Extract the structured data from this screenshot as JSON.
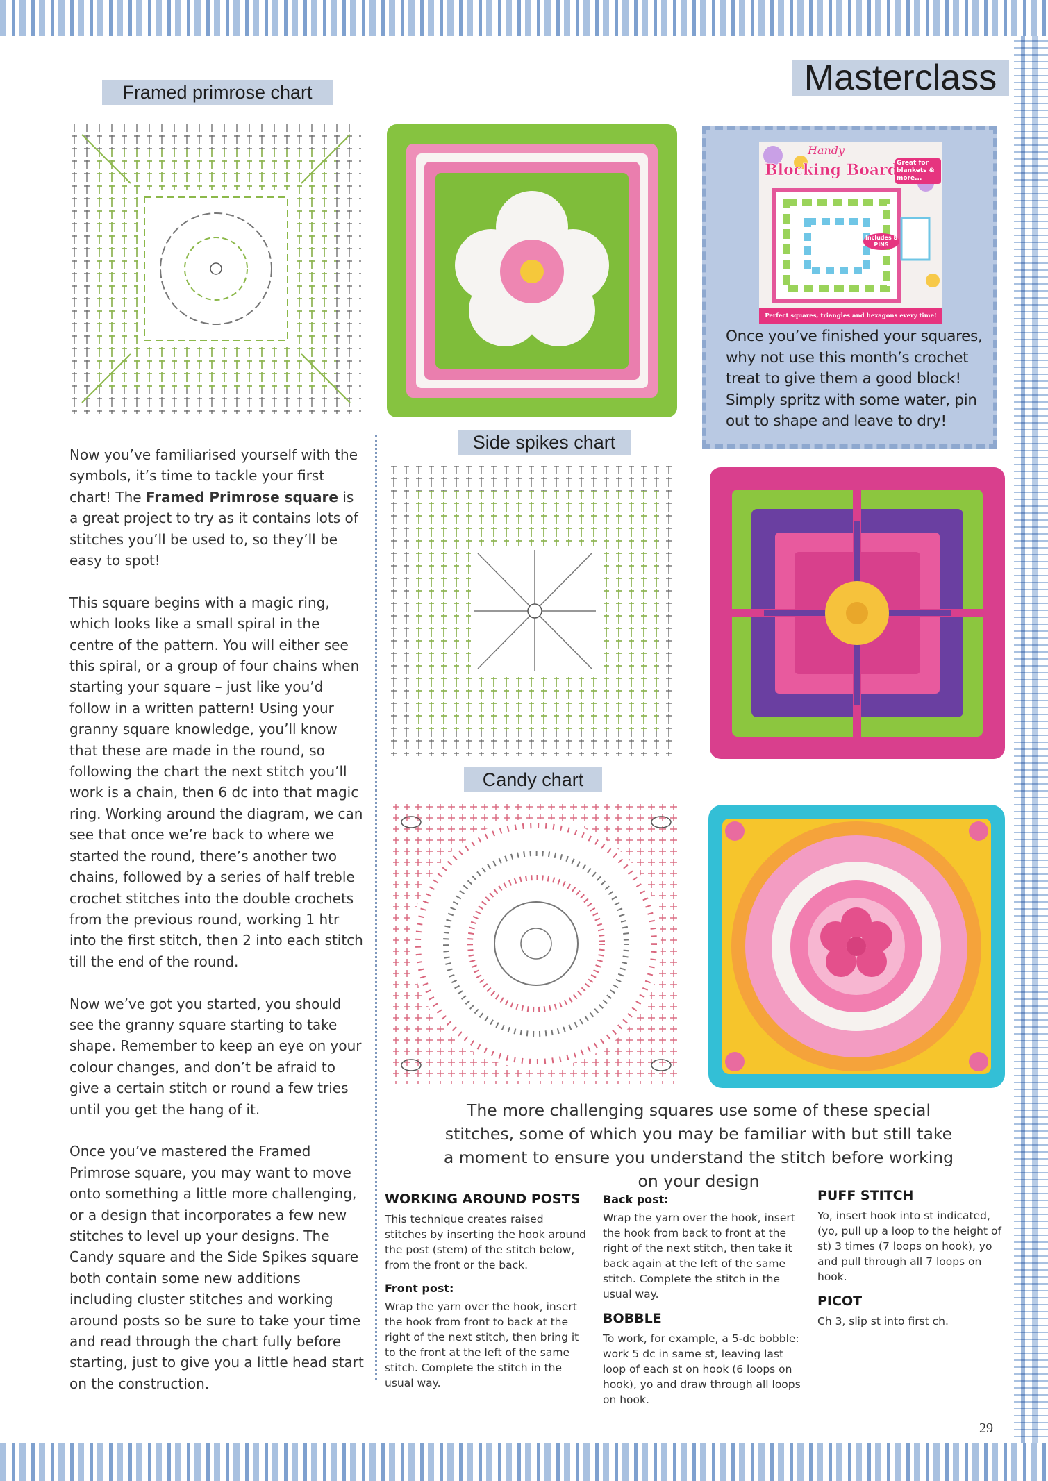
{
  "header": {
    "title": "Masterclass"
  },
  "charts": [
    {
      "label": "Framed primrose chart"
    },
    {
      "label": "Side spikes chart"
    },
    {
      "label": "Candy chart"
    }
  ],
  "body": {
    "intro": {
      "start": "Now you’ve familiarised yourself with the symbols, it’s time to tackle your first chart! The ",
      "bold": "Framed Primrose square",
      "end": " is a great project to try as it contains lots of stitches you’ll be used to, so they’ll be easy to spot!"
    },
    "paragraphs": [
      "This square begins with a magic ring, which looks like a small spiral in the centre of the pattern. You will either see this spiral, or a group of four chains when starting your square – just like you’d follow in a written pattern! Using your granny square knowledge, you’ll know that these are made in the round, so following the chart the next stitch you’ll work is a chain, then 6 dc into that magic ring. Working around the diagram, we can see that once we’re back to where we started the round, there’s another two chains, followed by a series of half treble crochet stitches into the double crochets from the previous round, working 1 htr into the first stitch, then 2 into each stitch till the end of the round.",
      "Now we’ve got you started, you should see the granny square starting to take shape. Remember to keep an eye on your colour changes, and don’t be afraid to give a certain stitch or round a few tries until you get the hang of it.",
      "Once you’ve mastered the Framed Primrose square, you may want to move onto something a little more challenging, or a design that incorporates a few new stitches to level up your designs. The Candy square and the Side Spikes square both contain some new additions including cluster stitches and working around posts so be sure to take your time and read through the chart fully before starting, just to give you a little head start on the construction."
    ]
  },
  "promo": {
    "cover_script": "Handy",
    "cover_title": "Blocking Board",
    "cover_badge": "Great for blankets & more...",
    "cover_pins": "Includes 8 PINS",
    "cover_footer": "Perfect squares, triangles and hexagons every time!",
    "text": "Once you’ve finished your squares, why not use this month’s crochet treat to give them a good block! Simply spritz with some water, pin out to shape and leave to dry!"
  },
  "stitches": {
    "intro": "The more challenging squares use some of these special stitches, some of which you may be familiar with but still take a moment to ensure you understand the stitch before working on your design",
    "posts": {
      "heading": "WORKING AROUND POSTS",
      "text": "This technique creates raised stitches by inserting the hook around the post (stem) of the stitch below, from the front or the back.",
      "front_heading": "Front post:",
      "front_text": "Wrap the yarn over the hook, insert the hook from front to back at the right of the next stitch, then bring it to the front at the left of the same stitch. Complete the stitch in the usual way.",
      "back_heading": "Back post:",
      "back_text": "Wrap the yarn over the hook, insert the hook from back to front at the right of the next stitch, then take it back again at the left of the same stitch. Complete the stitch in the usual way."
    },
    "bobble": {
      "heading": "BOBBLE",
      "text": "To work, for example, a 5-dc bobble: work 5 dc in same st, leaving last loop of each st on hook (6 loops on hook), yo and draw through all loops on hook."
    },
    "puff": {
      "heading": "PUFF STITCH",
      "text": "Yo, insert hook into st indicated, (yo, pull up a loop to the height of st) 3 times (7 loops on hook), yo and pull through all 7 loops on hook."
    },
    "picot": {
      "heading": "PICOT",
      "text": "Ch 3, slip st into first ch."
    }
  },
  "footer": {
    "page_number": "29"
  }
}
